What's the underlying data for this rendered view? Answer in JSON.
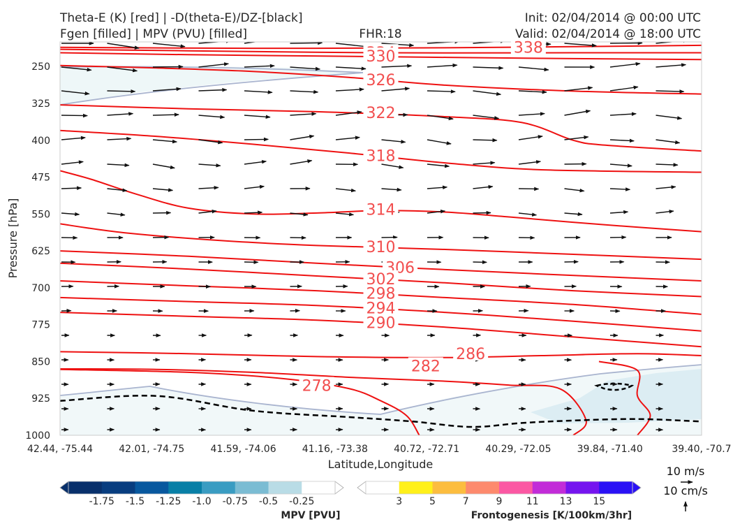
{
  "titles": {
    "left_line1": "Theta-E (K) [red] | -D(theta-E)/DZ-[black]",
    "left_line2": "Fgen [filled] | MPV (PVU) [filled]",
    "center": "FHR:18",
    "right_line1": "Init: 02/04/2014 @ 00:00 UTC",
    "right_line2": "Valid: 02/04/2014 @ 18:00 UTC"
  },
  "chart_data": {
    "type": "cross-section",
    "xlabel": "Latitude,Longitude",
    "ylabel": "Pressure [hPa]",
    "x_ticks": [
      "42.44, -75.44",
      "42.01, -74.75",
      "41.59, -74.06",
      "41.16, -73.38",
      "40.72, -72.71",
      "40.29, -72.05",
      "39.84, -71.40",
      "39.40, -70.7"
    ],
    "y_ticks": [
      250,
      325,
      400,
      475,
      550,
      625,
      700,
      775,
      850,
      925,
      1000
    ],
    "ylim": [
      1000,
      200
    ],
    "theta_e_color": "#ee1111",
    "theta_e_contours": [
      {
        "value": 338,
        "label": "338",
        "label_at": [
          0.73,
          212
        ],
        "points": [
          [
            0,
            211
          ],
          [
            0.3,
            213
          ],
          [
            0.6,
            212
          ],
          [
            1,
            207
          ]
        ]
      },
      {
        "value": 334,
        "label": "334",
        "label_at": [
          0.5,
          223
        ],
        "points": [
          [
            0,
            215
          ],
          [
            0.2,
            218
          ],
          [
            0.5,
            222
          ],
          [
            0.8,
            222
          ],
          [
            1,
            222
          ]
        ]
      },
      {
        "value": 330,
        "label": "330",
        "label_at": [
          0.5,
          230
        ],
        "points": [
          [
            0,
            222
          ],
          [
            0.2,
            226
          ],
          [
            0.5,
            230
          ],
          [
            0.8,
            234
          ],
          [
            1,
            236
          ]
        ]
      },
      {
        "value": 326,
        "label": "326",
        "label_at": [
          0.5,
          278
        ],
        "points": [
          [
            0,
            248
          ],
          [
            0.15,
            253
          ],
          [
            0.3,
            260
          ],
          [
            0.45,
            272
          ],
          [
            0.6,
            288
          ],
          [
            0.8,
            300
          ],
          [
            1,
            306
          ]
        ]
      },
      {
        "value": 322,
        "label": "322",
        "label_at": [
          0.5,
          345
        ],
        "points": [
          [
            0,
            328
          ],
          [
            0.2,
            336
          ],
          [
            0.4,
            342
          ],
          [
            0.6,
            352
          ],
          [
            0.72,
            364
          ],
          [
            0.8,
            400
          ],
          [
            0.85,
            410
          ],
          [
            1,
            422
          ]
        ]
      },
      {
        "value": 318,
        "label": "318",
        "label_at": [
          0.5,
          432
        ],
        "points": [
          [
            0,
            380
          ],
          [
            0.15,
            392
          ],
          [
            0.3,
            408
          ],
          [
            0.45,
            426
          ],
          [
            0.6,
            446
          ],
          [
            0.75,
            460
          ],
          [
            1,
            465
          ]
        ]
      },
      {
        "value": 314,
        "label": "314",
        "label_at": [
          0.5,
          542
        ],
        "points": [
          [
            0,
            462
          ],
          [
            0.05,
            480
          ],
          [
            0.12,
            510
          ],
          [
            0.2,
            538
          ],
          [
            0.3,
            550
          ],
          [
            0.4,
            548
          ],
          [
            0.5,
            543
          ],
          [
            0.6,
            546
          ],
          [
            0.7,
            556
          ],
          [
            0.85,
            572
          ],
          [
            1,
            586
          ]
        ]
      },
      {
        "value": 310,
        "label": "310",
        "label_at": [
          0.5,
          618
        ],
        "points": [
          [
            0,
            570
          ],
          [
            0.1,
            588
          ],
          [
            0.25,
            604
          ],
          [
            0.4,
            614
          ],
          [
            0.6,
            622
          ],
          [
            0.8,
            632
          ],
          [
            1,
            642
          ]
        ]
      },
      {
        "value": 306,
        "label": "306",
        "label_at": [
          0.53,
          660
        ],
        "points": [
          [
            0,
            625
          ],
          [
            0.2,
            636
          ],
          [
            0.4,
            650
          ],
          [
            0.55,
            660
          ],
          [
            0.75,
            672
          ],
          [
            1,
            686
          ]
        ]
      },
      {
        "value": 302,
        "label": "302",
        "label_at": [
          0.5,
          683
        ],
        "points": [
          [
            0,
            650
          ],
          [
            0.2,
            662
          ],
          [
            0.4,
            676
          ],
          [
            0.6,
            690
          ],
          [
            0.8,
            706
          ],
          [
            1,
            718
          ]
        ]
      },
      {
        "value": 298,
        "label": "298",
        "label_at": [
          0.5,
          712
        ],
        "points": [
          [
            0,
            686
          ],
          [
            0.2,
            696
          ],
          [
            0.4,
            706
          ],
          [
            0.6,
            720
          ],
          [
            0.8,
            734
          ],
          [
            1,
            754
          ]
        ]
      },
      {
        "value": 294,
        "label": "294",
        "label_at": [
          0.5,
          742
        ],
        "points": [
          [
            0,
            720
          ],
          [
            0.2,
            728
          ],
          [
            0.4,
            736
          ],
          [
            0.6,
            750
          ],
          [
            0.8,
            768
          ],
          [
            1,
            788
          ]
        ]
      },
      {
        "value": 290,
        "label": "290",
        "label_at": [
          0.5,
          772
        ],
        "points": [
          [
            0,
            750
          ],
          [
            0.2,
            758
          ],
          [
            0.4,
            766
          ],
          [
            0.6,
            780
          ],
          [
            0.8,
            800
          ],
          [
            1,
            820
          ]
        ]
      },
      {
        "value": 286,
        "label": "286",
        "label_at": [
          0.64,
          835
        ],
        "points": [
          [
            0,
            830
          ],
          [
            0.2,
            834
          ],
          [
            0.4,
            840
          ],
          [
            0.6,
            842
          ],
          [
            0.75,
            838
          ],
          [
            0.9,
            834
          ],
          [
            1,
            838
          ]
        ]
      },
      {
        "value": 282,
        "label": "282",
        "label_at": [
          0.57,
          860
        ],
        "points": [
          [
            0,
            865
          ],
          [
            0.15,
            866
          ],
          [
            0.3,
            872
          ],
          [
            0.45,
            882
          ],
          [
            0.6,
            890
          ],
          [
            0.7,
            898
          ],
          [
            0.78,
            906
          ],
          [
            0.82,
            970
          ],
          [
            0.8,
            1000
          ]
        ]
      },
      {
        "value": 278,
        "label": "278",
        "label_at": [
          0.4,
          900
        ],
        "points": [
          [
            0,
            866
          ],
          [
            0.2,
            872
          ],
          [
            0.35,
            885
          ],
          [
            0.45,
            905
          ],
          [
            0.5,
            930
          ],
          [
            0.54,
            960
          ],
          [
            0.56,
            1000
          ]
        ]
      },
      {
        "value": 286,
        "label": "",
        "label_at": null,
        "points": [
          [
            0.84,
            850
          ],
          [
            0.9,
            868
          ],
          [
            0.9,
            920
          ],
          [
            0.92,
            960
          ],
          [
            0.9,
            1000
          ]
        ]
      }
    ],
    "dashed_line": [
      [
        0,
        930
      ],
      [
        0.15,
        920
      ],
      [
        0.3,
        950
      ],
      [
        0.45,
        963
      ],
      [
        0.55,
        972
      ],
      [
        0.64,
        983
      ],
      [
        0.72,
        975
      ],
      [
        0.8,
        970
      ],
      [
        0.9,
        967
      ],
      [
        1,
        972
      ]
    ],
    "wind_scale": {
      "length_label": "10 m/s",
      "vertical_label": "10 cm/s"
    },
    "mpv_colorbar": {
      "label": "MPV [PVU]",
      "ticks": [
        "-1.75",
        "-1.5",
        "-1.25",
        "-1.0",
        "-0.75",
        "-0.5",
        "-0.25"
      ],
      "colors": [
        "#08306b",
        "#08306b",
        "#083d7f",
        "#08589e",
        "#087fa6",
        "#3a9cc2",
        "#7bbcd3",
        "#b9dce6",
        "#ffffff",
        "#ffffff"
      ]
    },
    "fgen_colorbar": {
      "label": "Frontogenesis [K/100km/3hr]",
      "ticks": [
        "3",
        "5",
        "7",
        "9",
        "11",
        "13",
        "15"
      ],
      "colors": [
        "#ffffff",
        "#ffffff",
        "#fff01a",
        "#fcbd3f",
        "#fd8a6d",
        "#fb58a3",
        "#c22cd8",
        "#7514ef",
        "#2a11f5",
        "#2a11f5"
      ]
    }
  }
}
